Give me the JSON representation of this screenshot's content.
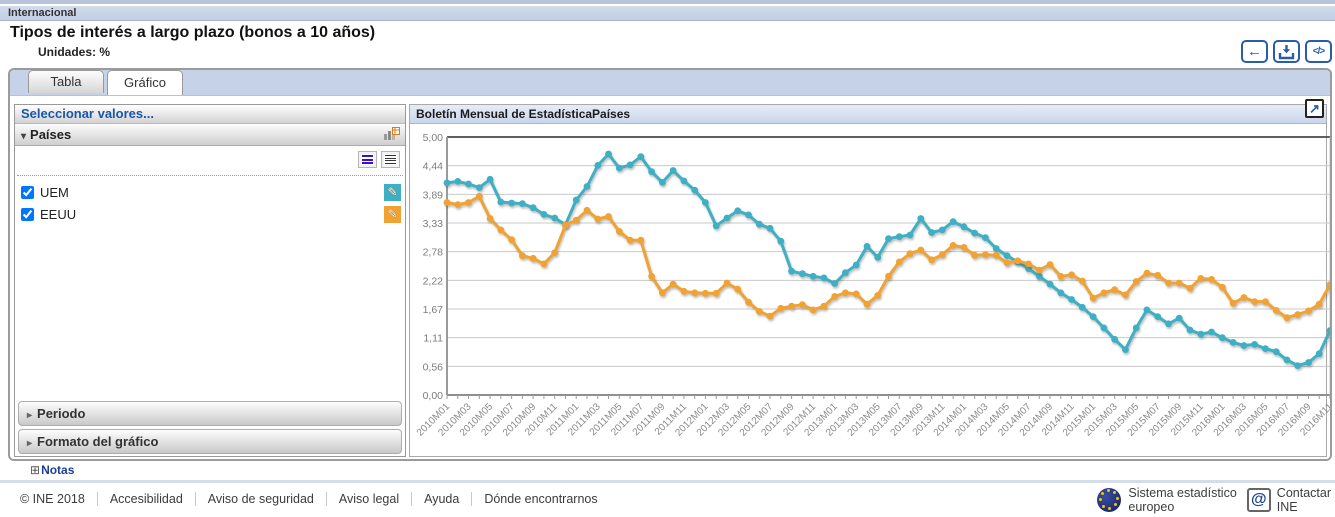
{
  "page": {
    "section_label": "Internacional",
    "title": "Tipos de interés a largo plazo (bonos a 10 años)",
    "units_label": "Unidades: %"
  },
  "icons": {
    "back": "←",
    "code": "</>",
    "expand": "↗",
    "pencil": "✎",
    "triangle_down": "▾",
    "triangle_right": "▸",
    "notes_plus": "⊞",
    "at": "@"
  },
  "tabs": [
    {
      "label": "Tabla",
      "active": false
    },
    {
      "label": "Gráfico",
      "active": true
    }
  ],
  "selector": {
    "header": "Seleccionar valores...",
    "group_label": "Países",
    "items": [
      {
        "label": "UEM",
        "checked": true,
        "color": "#3FAFC4"
      },
      {
        "label": "EEUU",
        "checked": true,
        "color": "#F0A232"
      }
    ],
    "collapsed_sections": [
      {
        "label": "Periodo"
      },
      {
        "label": "Formato del gráfico"
      }
    ]
  },
  "chart": {
    "header": "Boletín Mensual de EstadísticaPaíses"
  },
  "chart_data": {
    "type": "line",
    "title": "Boletín Mensual de EstadísticaPaíses",
    "xlabel": "",
    "ylabel": "",
    "ylim": [
      0,
      5
    ],
    "grid": true,
    "legend_position": "none",
    "y_tick_labels": [
      "0,00",
      "0,56",
      "1,11",
      "1,67",
      "2,22",
      "2,78",
      "3,33",
      "3,89",
      "4,44",
      "5,00"
    ],
    "x_label_every": 2,
    "categories": [
      "2010M01",
      "2010M02",
      "2010M03",
      "2010M04",
      "2010M05",
      "2010M06",
      "2010M07",
      "2010M08",
      "2010M09",
      "2010M10",
      "2010M11",
      "2010M12",
      "2011M01",
      "2011M02",
      "2011M03",
      "2011M04",
      "2011M05",
      "2011M06",
      "2011M07",
      "2011M08",
      "2011M09",
      "2011M10",
      "2011M11",
      "2011M12",
      "2012M01",
      "2012M02",
      "2012M03",
      "2012M04",
      "2012M05",
      "2012M06",
      "2012M07",
      "2012M08",
      "2012M09",
      "2012M10",
      "2012M11",
      "2012M12",
      "2013M01",
      "2013M02",
      "2013M03",
      "2013M04",
      "2013M05",
      "2013M06",
      "2013M07",
      "2013M08",
      "2013M09",
      "2013M10",
      "2013M11",
      "2013M12",
      "2014M01",
      "2014M02",
      "2014M03",
      "2014M04",
      "2014M05",
      "2014M06",
      "2014M07",
      "2014M08",
      "2014M09",
      "2014M10",
      "2014M11",
      "2014M12",
      "2015M01",
      "2015M02",
      "2015M03",
      "2015M04",
      "2015M05",
      "2015M06",
      "2015M07",
      "2015M08",
      "2015M09",
      "2015M10",
      "2015M11",
      "2015M12",
      "2016M01",
      "2016M02",
      "2016M03",
      "2016M04",
      "2016M05",
      "2016M06",
      "2016M07",
      "2016M08",
      "2016M09",
      "2016M10",
      "2016M11"
    ],
    "series": [
      {
        "name": "UEM",
        "color": "#3FAFC4",
        "values": [
          4.11,
          4.14,
          4.09,
          4.02,
          4.18,
          3.74,
          3.72,
          3.71,
          3.63,
          3.5,
          3.43,
          3.3,
          3.78,
          4.04,
          4.45,
          4.67,
          4.4,
          4.46,
          4.62,
          4.33,
          4.12,
          4.35,
          4.15,
          3.97,
          3.73,
          3.28,
          3.43,
          3.57,
          3.49,
          3.31,
          3.23,
          2.98,
          2.4,
          2.35,
          2.3,
          2.27,
          2.16,
          2.37,
          2.52,
          2.88,
          2.67,
          3.03,
          3.07,
          3.1,
          3.42,
          3.15,
          3.2,
          3.36,
          3.26,
          3.14,
          3.05,
          2.84,
          2.7,
          2.58,
          2.45,
          2.3,
          2.15,
          1.98,
          1.85,
          1.7,
          1.52,
          1.3,
          1.08,
          0.88,
          1.3,
          1.65,
          1.52,
          1.38,
          1.49,
          1.26,
          1.18,
          1.22,
          1.11,
          1.02,
          0.96,
          0.98,
          0.9,
          0.84,
          0.68,
          0.57,
          0.63,
          0.8,
          1.25
        ]
      },
      {
        "name": "EEUU",
        "color": "#F0A232",
        "values": [
          3.73,
          3.69,
          3.73,
          3.85,
          3.42,
          3.2,
          3.01,
          2.7,
          2.65,
          2.54,
          2.76,
          3.29,
          3.39,
          3.58,
          3.41,
          3.46,
          3.17,
          3.0,
          3.0,
          2.3,
          1.98,
          2.15,
          2.01,
          1.98,
          1.97,
          1.97,
          2.17,
          2.05,
          1.8,
          1.62,
          1.53,
          1.68,
          1.72,
          1.75,
          1.65,
          1.72,
          1.91,
          1.98,
          1.96,
          1.76,
          1.93,
          2.3,
          2.58,
          2.74,
          2.81,
          2.62,
          2.72,
          2.9,
          2.86,
          2.71,
          2.72,
          2.71,
          2.56,
          2.6,
          2.54,
          2.42,
          2.53,
          2.3,
          2.33,
          2.21,
          1.88,
          1.98,
          2.04,
          1.94,
          2.2,
          2.36,
          2.32,
          2.17,
          2.17,
          2.07,
          2.26,
          2.24,
          2.09,
          1.78,
          1.89,
          1.81,
          1.81,
          1.64,
          1.5,
          1.56,
          1.63,
          1.76,
          2.14
        ]
      }
    ]
  },
  "notes": {
    "label": "Notas"
  },
  "footer": {
    "links": [
      "© INE 2018",
      "Accesibilidad",
      "Aviso de seguridad",
      "Aviso legal",
      "Ayuda",
      "Dónde encontrarnos"
    ],
    "ess_line1": "Sistema estadístico",
    "ess_line2": "europeo",
    "contact_line1": "Contactar",
    "contact_line2": "INE"
  }
}
